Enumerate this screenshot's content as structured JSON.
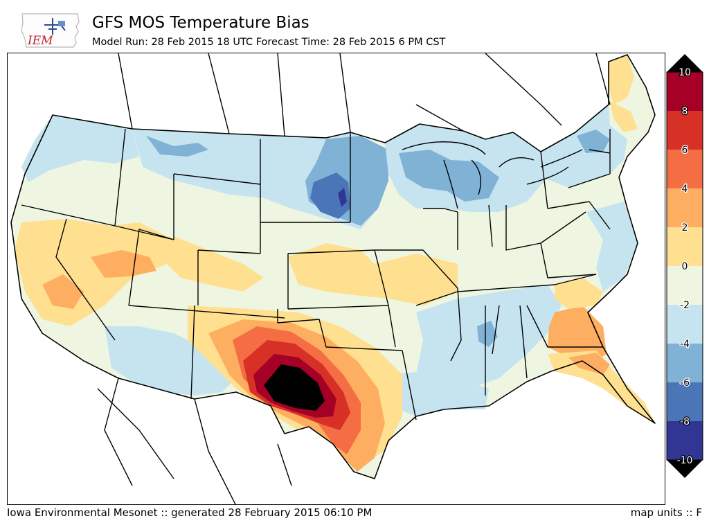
{
  "header": {
    "title": "GFS MOS Temperature Bias",
    "subtitle": "Model Run: 28 Feb 2015 18 UTC Forecast Time: 28 Feb 2015 6 PM CST"
  },
  "logo": {
    "text": "IEM"
  },
  "legend": {
    "ticks": [
      "10",
      "8",
      "6",
      "4",
      "2",
      "0",
      "-2",
      "-4",
      "-6",
      "-8",
      "-10"
    ],
    "bins": [
      {
        "range": [
          8,
          10
        ],
        "color": "#a50026"
      },
      {
        "range": [
          6,
          8
        ],
        "color": "#d73027"
      },
      {
        "range": [
          4,
          6
        ],
        "color": "#f46d43"
      },
      {
        "range": [
          2,
          4
        ],
        "color": "#fdae61"
      },
      {
        "range": [
          0,
          2
        ],
        "color": "#fee090"
      },
      {
        "range": [
          -2,
          0
        ],
        "color": "#eef6e2"
      },
      {
        "range": [
          -4,
          -2
        ],
        "color": "#c6e4f0"
      },
      {
        "range": [
          -6,
          -4
        ],
        "color": "#80b2d6"
      },
      {
        "range": [
          -8,
          -6
        ],
        "color": "#4a76b8"
      },
      {
        "range": [
          -10,
          -8
        ],
        "color": "#313695"
      }
    ],
    "over_color": "#000000",
    "under_color": "#000000"
  },
  "map": {
    "region": "Contiguous United States",
    "color_bias_neutral": "#eef6e2",
    "color_land_outside": "#ffffff",
    "color_borders": "#000000"
  },
  "footer": {
    "left": "Iowa Environmental Mesonet :: generated 28 February 2015 06:10 PM",
    "right": "map units :: F"
  }
}
